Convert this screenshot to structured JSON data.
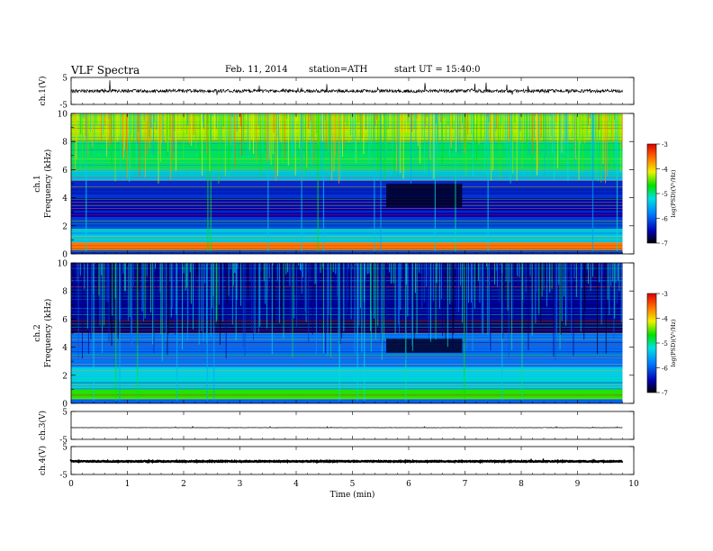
{
  "header": {
    "title": "VLF Spectra",
    "date": "Feb. 11, 2014",
    "station": "station=ATH",
    "start": "start UT =   15:40:0"
  },
  "chart_data": {
    "type": "heatmap",
    "xlabel": "Time (min)",
    "xlim": [
      0,
      10
    ],
    "xticks": [
      "0",
      "1",
      "2",
      "3",
      "4",
      "5",
      "6",
      "7",
      "8",
      "9",
      "10"
    ],
    "data_end_min": 9.8,
    "panels": [
      {
        "id": "ch1",
        "kind": "waveform",
        "ylabel": "ch.1(V)",
        "ylim": [
          -5,
          5
        ],
        "yticks": [
          "5",
          "-5"
        ],
        "baseline_v": 0,
        "noise_amplitude_v": 0.6,
        "spike_amplitude_v": 2.5
      },
      {
        "id": "ch1-spec",
        "kind": "spectrogram",
        "ylabel": "ch.1\nFrequency (kHz)",
        "ylim": [
          0,
          10
        ],
        "yticks": [
          "0",
          "2",
          "4",
          "6",
          "8",
          "10"
        ],
        "colorbar": {
          "label": "log(PSD)(V²/Hz)",
          "range": [
            -7,
            -3
          ],
          "ticks": [
            "-3",
            "-4",
            "-5",
            "-6",
            "-7"
          ]
        },
        "bands": [
          {
            "f0": 0,
            "f1": 0.25,
            "level": -6.3
          },
          {
            "f0": 0.25,
            "f1": 0.8,
            "level": -3.6
          },
          {
            "f0": 0.8,
            "f1": 1.8,
            "level": -5.4
          },
          {
            "f0": 1.8,
            "f1": 2.6,
            "level": -6.2
          },
          {
            "f0": 2.6,
            "f1": 4.0,
            "level": -6.5
          },
          {
            "f0": 4.0,
            "f1": 5.2,
            "level": -6.3
          },
          {
            "f0": 5.2,
            "f1": 6.0,
            "level": -5.4
          },
          {
            "f0": 6.0,
            "f1": 8.0,
            "level": -4.9
          },
          {
            "f0": 8.0,
            "f1": 10.0,
            "level": -4.3
          }
        ],
        "dark_intervals": [
          {
            "t0": 5.6,
            "t1": 6.95,
            "f0": 3.3,
            "f1": 5.0,
            "level": -6.9
          }
        ],
        "sferic_level": -3.4
      },
      {
        "id": "ch2-spec",
        "kind": "spectrogram",
        "ylabel": "ch.2\nFrequency (kHz)",
        "ylim": [
          0,
          10
        ],
        "yticks": [
          "0",
          "2",
          "4",
          "6",
          "8",
          "10"
        ],
        "colorbar": {
          "label": "log(PSD)(V²/Hz)",
          "range": [
            -7,
            -3
          ],
          "ticks": [
            "-3",
            "-4",
            "-5",
            "-6",
            "-7"
          ]
        },
        "bands": [
          {
            "f0": 0,
            "f1": 0.3,
            "level": -6.0
          },
          {
            "f0": 0.3,
            "f1": 1.0,
            "level": -4.6
          },
          {
            "f0": 1.0,
            "f1": 2.6,
            "level": -5.3
          },
          {
            "f0": 2.6,
            "f1": 5.0,
            "level": -5.9
          },
          {
            "f0": 5.0,
            "f1": 6.0,
            "level": -6.7
          },
          {
            "f0": 6.0,
            "f1": 10.0,
            "level": -6.6
          }
        ],
        "dark_intervals": [
          {
            "t0": 5.6,
            "t1": 6.95,
            "f0": 3.6,
            "f1": 4.6,
            "level": -6.9
          }
        ],
        "sferic_level": -4.8
      },
      {
        "id": "ch3",
        "kind": "waveform",
        "ylabel": "ch.3(V)",
        "ylim": [
          -5,
          5
        ],
        "yticks": [
          "5",
          "-5"
        ],
        "baseline_v": -0.8,
        "noise_amplitude_v": 0.05,
        "spike_amplitude_v": 0.3
      },
      {
        "id": "ch4",
        "kind": "waveform",
        "ylabel": "ch.4(V)",
        "ylim": [
          -5,
          5
        ],
        "yticks": [
          "5",
          "-5"
        ],
        "baseline_v": -0.3,
        "noise_amplitude_v": 0.15,
        "spike_amplitude_v": 0.2
      }
    ]
  }
}
